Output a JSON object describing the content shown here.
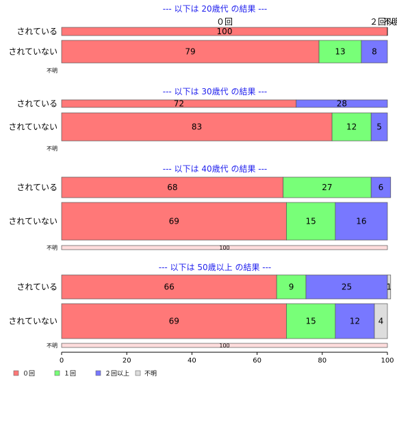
{
  "chart_data": {
    "type": "bar",
    "orientation": "horizontal",
    "stacked": true,
    "xlim": [
      0,
      100
    ],
    "x_ticks": [
      0,
      20,
      40,
      60,
      80,
      100
    ],
    "grid": false,
    "legend_position": "bottom-left",
    "legend": [
      "０回",
      "１回",
      "２回以上",
      "不明"
    ],
    "colors": {
      "０回": "#ff7878",
      "１回": "#78ff78",
      "２回以上": "#7878ff",
      "不明": "#dddddd"
    },
    "panels": [
      {
        "title": "--- 以下は 20歳代 の結果 ---",
        "rows": [
          {
            "label": "されている",
            "values": [
              100,
              0,
              0,
              0
            ]
          },
          {
            "label": "されていない",
            "values": [
              79,
              13,
              8,
              0
            ]
          },
          {
            "label": "不明",
            "values": [
              0,
              0,
              0,
              0
            ]
          }
        ],
        "annotations": [
          "０回",
          "２回以上",
          "不明"
        ]
      },
      {
        "title": "--- 以下は 30歳代 の結果 ---",
        "rows": [
          {
            "label": "されている",
            "values": [
              72,
              0,
              28,
              0
            ]
          },
          {
            "label": "されていない",
            "values": [
              83,
              12,
              5,
              0
            ]
          },
          {
            "label": "不明",
            "values": [
              0,
              0,
              0,
              0
            ]
          }
        ]
      },
      {
        "title": "--- 以下は 40歳代 の結果 ---",
        "rows": [
          {
            "label": "されている",
            "values": [
              68,
              27,
              6,
              0
            ]
          },
          {
            "label": "されていない",
            "values": [
              69,
              15,
              16,
              0
            ]
          },
          {
            "label": "不明",
            "values": [
              0,
              0,
              0,
              100
            ]
          }
        ]
      },
      {
        "title": "--- 以下は 50歳以上 の結果 ---",
        "rows": [
          {
            "label": "されている",
            "values": [
              66,
              9,
              25,
              1
            ]
          },
          {
            "label": "されていない",
            "values": [
              69,
              15,
              12,
              4
            ]
          },
          {
            "label": "不明",
            "values": [
              0,
              0,
              0,
              100
            ]
          }
        ]
      }
    ]
  }
}
